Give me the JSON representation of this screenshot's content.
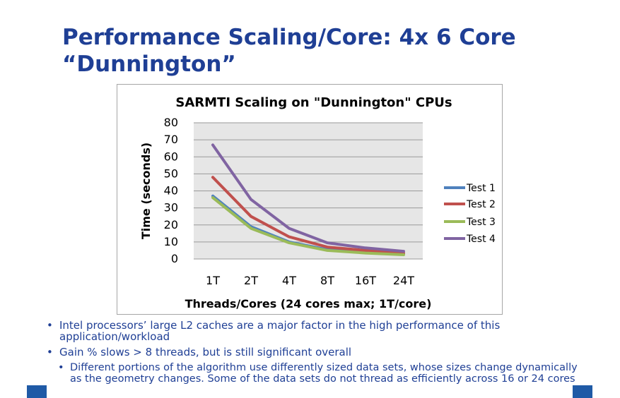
{
  "slide": {
    "title": "Performance Scaling/Core: 4x 6 Core “Dunnington”",
    "bullets": [
      {
        "text": "Intel processors’ large L2 caches are a major factor in the high performance of this application/workload",
        "level": 1
      },
      {
        "text": "Gain % slows > 8 threads, but is still significant overall",
        "level": 1
      },
      {
        "text": "Different portions of the algorithm use differently sized data sets, whose sizes change dynamically as the geometry changes. Some of the data sets do not thread as efficiently across 16 or 24 cores",
        "level": 2
      }
    ]
  },
  "chart_data": {
    "type": "line",
    "title": "SARMTI Scaling on \"Dunnington\" CPUs",
    "xlabel": "Threads/Cores (24 cores max; 1T/core)",
    "ylabel": "Time (seconds)",
    "categories": [
      "1T",
      "2T",
      "4T",
      "8T",
      "16T",
      "24T"
    ],
    "ylim": [
      0,
      80
    ],
    "yticks": [
      0,
      10,
      20,
      30,
      40,
      50,
      60,
      70,
      80
    ],
    "grid": true,
    "legend_position": "right",
    "series": [
      {
        "name": "Test 1",
        "color": "#4f81bd",
        "values": [
          37,
          19,
          10,
          5.5,
          4,
          3
        ]
      },
      {
        "name": "Test 2",
        "color": "#c0504d",
        "values": [
          48,
          25,
          13,
          7,
          5,
          3.5
        ]
      },
      {
        "name": "Test 3",
        "color": "#9bbb59",
        "values": [
          36,
          18,
          9.5,
          5,
          3.5,
          2.5
        ]
      },
      {
        "name": "Test 4",
        "color": "#8064a2",
        "values": [
          67,
          35,
          18,
          9.5,
          6.5,
          4.5
        ]
      }
    ]
  }
}
